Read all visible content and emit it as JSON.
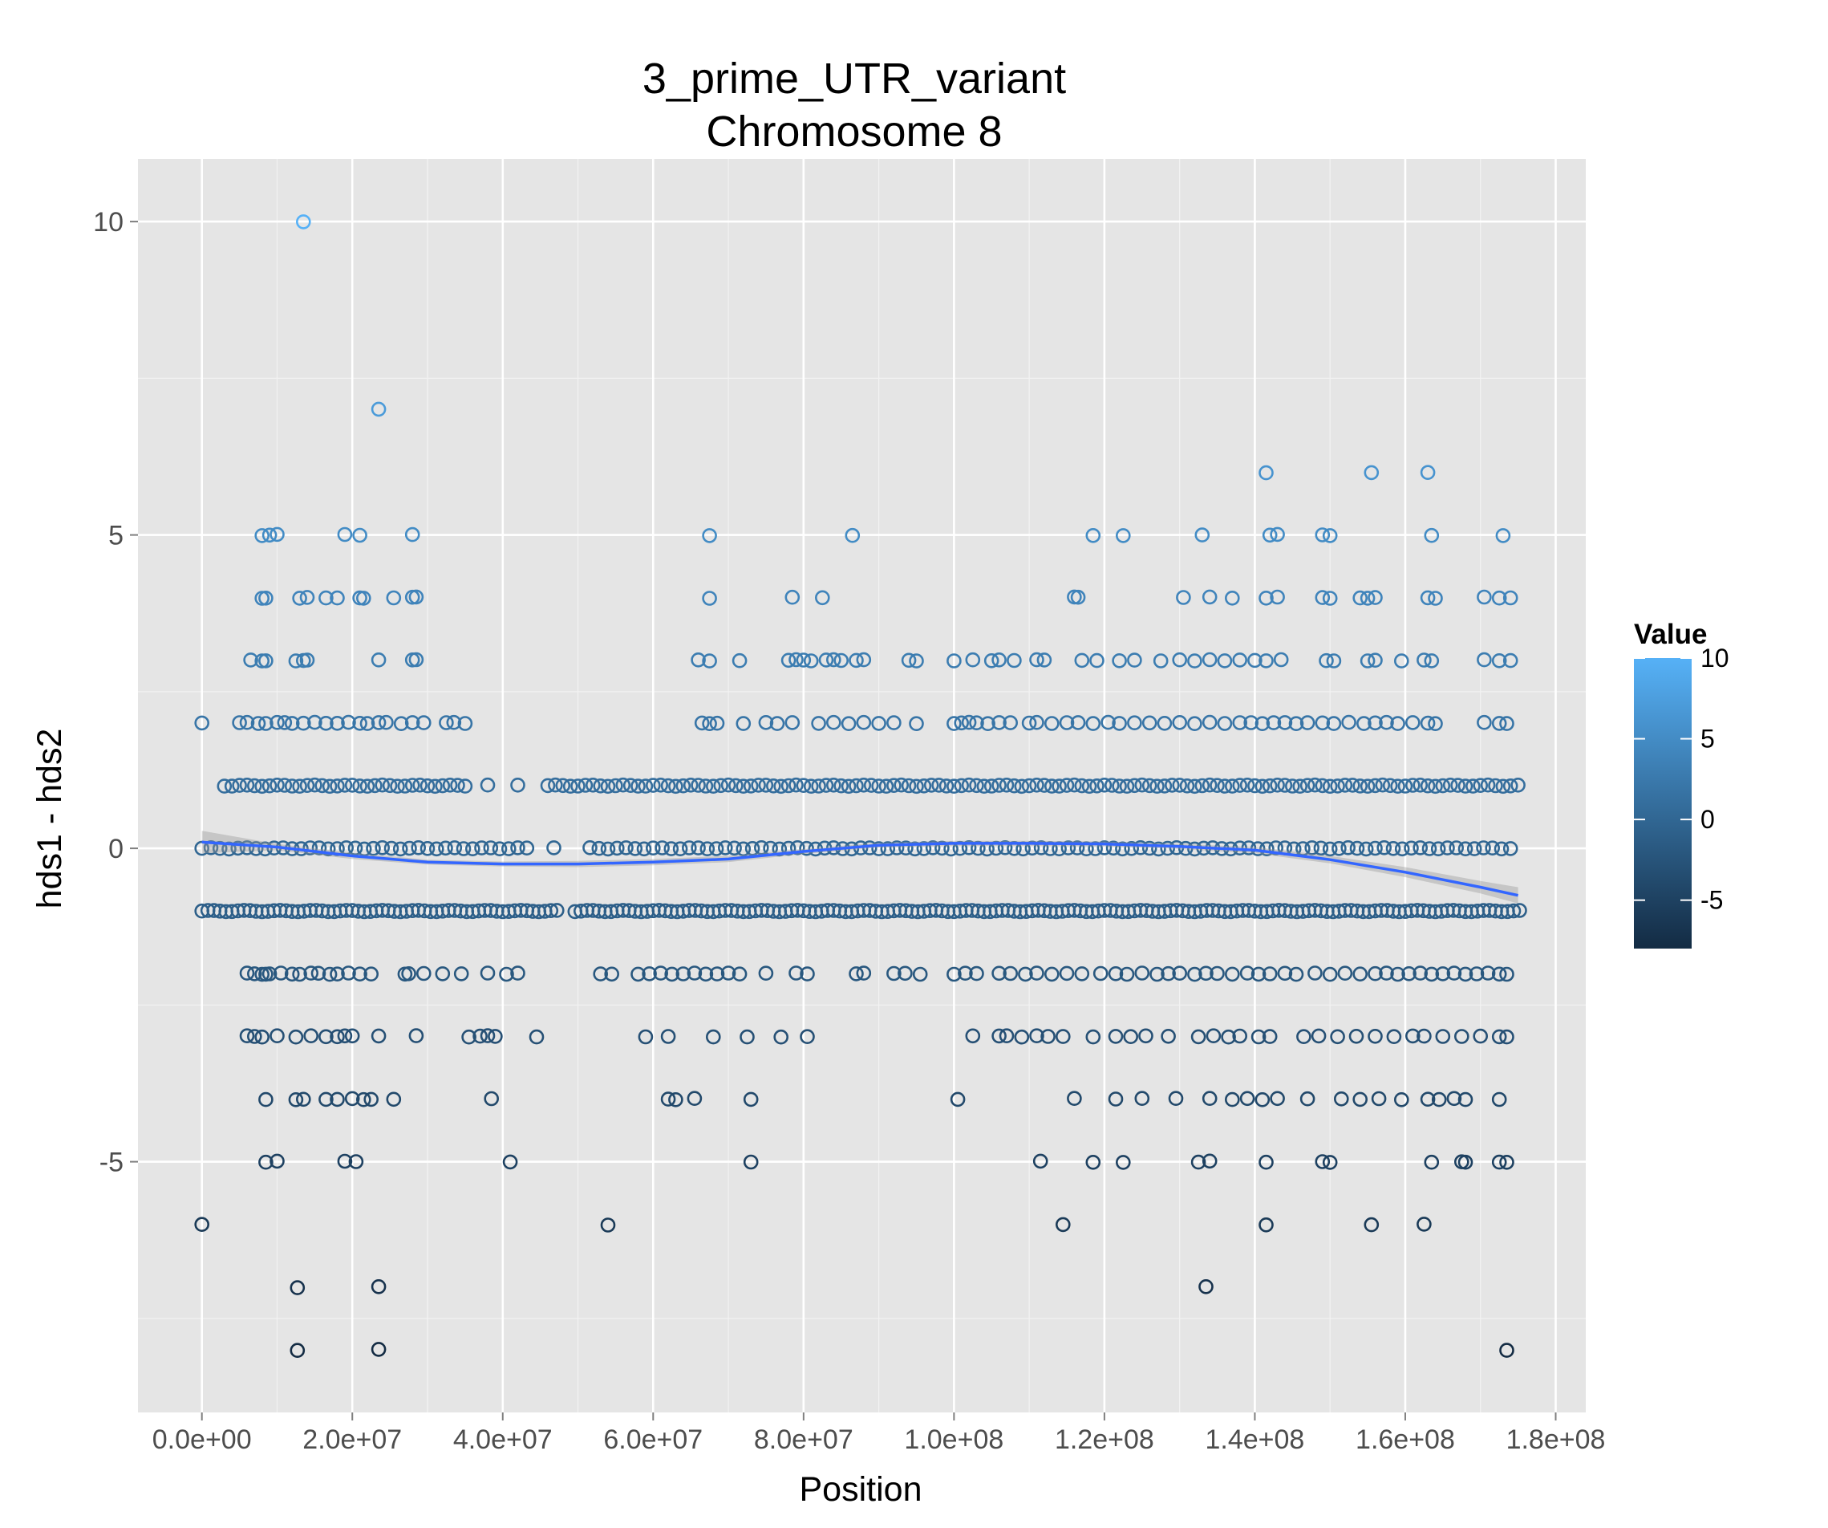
{
  "chart_data": {
    "type": "scatter",
    "title": [
      "3_prime_UTR_variant",
      "Chromosome 8"
    ],
    "xlabel": "Position",
    "ylabel": "hds1 - hds2",
    "xlim": [
      -8500000,
      184000000
    ],
    "ylim": [
      -9.0,
      11.0
    ],
    "x_ticks": [
      0,
      20000000,
      40000000,
      60000000,
      80000000,
      100000000,
      120000000,
      140000000,
      160000000,
      180000000
    ],
    "x_tick_labels": [
      "0.0e+00",
      "2.0e+07",
      "4.0e+07",
      "6.0e+07",
      "8.0e+07",
      "1.0e+08",
      "1.2e+08",
      "1.4e+08",
      "1.6e+08",
      "1.8e+08"
    ],
    "y_ticks": [
      10,
      5,
      0,
      -5
    ],
    "y_tick_labels": [
      "10",
      "5",
      "0",
      "-5"
    ],
    "grid": true,
    "panel_background": "#e5e5e5",
    "point_shape": "open-circle",
    "color_scale": {
      "title": "Value",
      "low": -8,
      "high": 10,
      "low_color": "#132b43",
      "high_color": "#56b1f7",
      "breaks": [
        10,
        5,
        0,
        -5
      ],
      "break_labels": [
        "10",
        "5",
        "0",
        "-5"
      ],
      "position": "right"
    },
    "smooth": {
      "color": "#3366ff",
      "band_color": "#999999",
      "x": [
        0,
        10000000,
        20000000,
        30000000,
        40000000,
        50000000,
        60000000,
        70000000,
        80000000,
        90000000,
        100000000,
        110000000,
        120000000,
        130000000,
        140000000,
        150000000,
        160000000,
        170000000,
        175000000
      ],
      "y": [
        0.1,
        0.02,
        -0.12,
        -0.22,
        -0.25,
        -0.25,
        -0.22,
        -0.17,
        -0.05,
        0.05,
        0.08,
        0.08,
        0.07,
        0.03,
        -0.03,
        -0.18,
        -0.38,
        -0.62,
        -0.75
      ],
      "band": [
        0.18,
        0.05,
        0.05,
        0.04,
        0.04,
        0.05,
        0.05,
        0.05,
        0.04,
        0.04,
        0.04,
        0.04,
        0.04,
        0.04,
        0.05,
        0.06,
        0.08,
        0.1,
        0.13
      ]
    },
    "points": [
      {
        "x": 13500000,
        "y": 10
      },
      {
        "x": 23500000,
        "y": 7
      },
      {
        "x": 141500000,
        "y": 6
      },
      {
        "x": 155500000,
        "y": 6
      },
      {
        "x": 163000000,
        "y": 6
      },
      {
        "x": 8000000,
        "y": 5
      },
      {
        "x": 9000000,
        "y": 5
      },
      {
        "x": 10000000,
        "y": 5
      },
      {
        "x": 19000000,
        "y": 5
      },
      {
        "x": 21000000,
        "y": 5
      },
      {
        "x": 28000000,
        "y": 5
      },
      {
        "x": 67500000,
        "y": 5
      },
      {
        "x": 86500000,
        "y": 5
      },
      {
        "x": 118500000,
        "y": 5
      },
      {
        "x": 122500000,
        "y": 5
      },
      {
        "x": 133000000,
        "y": 5
      },
      {
        "x": 142000000,
        "y": 5
      },
      {
        "x": 143000000,
        "y": 5
      },
      {
        "x": 149000000,
        "y": 5
      },
      {
        "x": 150000000,
        "y": 5
      },
      {
        "x": 163500000,
        "y": 5
      },
      {
        "x": 173000000,
        "y": 5
      },
      {
        "x": 0,
        "y": -6
      },
      {
        "x": 54000000,
        "y": -6
      },
      {
        "x": 114500000,
        "y": -6
      },
      {
        "x": 141500000,
        "y": -6
      },
      {
        "x": 155500000,
        "y": -6
      },
      {
        "x": 162500000,
        "y": -6
      },
      {
        "x": 12700000,
        "y": -7
      },
      {
        "x": 23500000,
        "y": -7
      },
      {
        "x": 133500000,
        "y": -7
      },
      {
        "x": 12700000,
        "y": -8
      },
      {
        "x": 23500000,
        "y": -8
      },
      {
        "x": 173500000,
        "y": -8
      }
    ],
    "rows": [
      {
        "y": 4,
        "x": [
          8000000,
          8500000,
          13000000,
          14000000,
          16500000,
          18000000,
          21000000,
          21500000,
          25500000,
          28000000,
          28500000,
          67500000,
          78500000,
          82500000,
          116000000,
          116500000,
          130500000,
          134000000,
          137000000,
          141500000,
          143000000,
          149000000,
          150000000,
          154000000,
          155000000,
          156000000,
          163000000,
          164000000,
          170500000,
          172500000,
          174000000
        ]
      },
      {
        "y": 3,
        "x": [
          6500000,
          8000000,
          8500000,
          12500000,
          13500000,
          14000000,
          23500000,
          28000000,
          28500000,
          66000000,
          67500000,
          71500000,
          78000000,
          79000000,
          80000000,
          81000000,
          83000000,
          84000000,
          85000000,
          87000000,
          88000000,
          94000000,
          95000000,
          100000000,
          102500000,
          105000000,
          106000000,
          108000000,
          111000000,
          112000000,
          117000000,
          119000000,
          122000000,
          124000000,
          127500000,
          130000000,
          132000000,
          134000000,
          136000000,
          138000000,
          140000000,
          141500000,
          143500000,
          149500000,
          150500000,
          155000000,
          156000000,
          159500000,
          162500000,
          163500000,
          170500000,
          172500000,
          174000000
        ]
      },
      {
        "y": 2,
        "x": [
          0,
          5000000,
          6000000,
          7500000,
          8500000,
          10000000,
          11000000,
          12000000,
          13500000,
          15000000,
          16500000,
          18000000,
          19500000,
          21000000,
          22000000,
          23500000,
          24500000,
          26500000,
          28000000,
          29500000,
          32500000,
          33500000,
          35000000,
          66500000,
          67500000,
          68500000,
          72000000,
          75000000,
          76500000,
          78500000,
          82000000,
          84000000,
          86000000,
          88000000,
          90000000,
          92000000,
          95000000,
          100000000,
          101000000,
          102000000,
          103000000,
          104500000,
          106000000,
          107500000,
          110000000,
          111000000,
          113000000,
          115000000,
          116500000,
          118500000,
          120500000,
          122000000,
          124000000,
          126000000,
          128000000,
          130000000,
          132000000,
          134000000,
          136000000,
          138000000,
          139500000,
          141000000,
          142500000,
          144000000,
          145500000,
          147000000,
          149000000,
          150500000,
          152500000,
          154500000,
          156000000,
          157500000,
          159000000,
          161000000,
          163000000,
          164000000,
          170500000,
          172500000,
          173500000
        ]
      },
      {
        "y": 1,
        "dense": true,
        "x0": 3000000,
        "x1": 175000000,
        "gap": [
          36000000,
          46000000
        ],
        "step": 1000000
      },
      {
        "y": 0,
        "dense": true,
        "x0": 0,
        "x1": 174500000,
        "gap": [
          44000000,
          52000000
        ],
        "step": 1200000
      },
      {
        "y": -1,
        "dense": true,
        "x0": 0,
        "x1": 175500000,
        "gap": [
          46500000,
          49500000
        ],
        "step": 800000
      },
      {
        "y": -2,
        "x": [
          6000000,
          7000000,
          8000000,
          8500000,
          9000000,
          10500000,
          12000000,
          13000000,
          14500000,
          15500000,
          17000000,
          18000000,
          19500000,
          21000000,
          22500000,
          27000000,
          27500000,
          29500000,
          32000000,
          34500000,
          38000000,
          40500000,
          42000000,
          53000000,
          54500000,
          58000000,
          59500000,
          61000000,
          62500000,
          64000000,
          65500000,
          67000000,
          68500000,
          70000000,
          71500000,
          75000000,
          79000000,
          80500000,
          87000000,
          88000000,
          92000000,
          93500000,
          95500000,
          100000000,
          101500000,
          103000000,
          106000000,
          107500000,
          109500000,
          111000000,
          113000000,
          115000000,
          117000000,
          119500000,
          121500000,
          123000000,
          125000000,
          127000000,
          128500000,
          130000000,
          132000000,
          133500000,
          135000000,
          137000000,
          139000000,
          140500000,
          142000000,
          144000000,
          145500000,
          148000000,
          150000000,
          152000000,
          154000000,
          156000000,
          157500000,
          159000000,
          160500000,
          162000000,
          163500000,
          165000000,
          166500000,
          168000000,
          169500000,
          171000000,
          172500000,
          173500000
        ]
      },
      {
        "y": -3,
        "x": [
          6000000,
          7000000,
          8000000,
          10000000,
          12500000,
          14500000,
          16500000,
          18000000,
          19000000,
          20000000,
          23500000,
          28500000,
          35500000,
          37000000,
          38000000,
          39000000,
          44500000,
          59000000,
          62000000,
          68000000,
          72500000,
          77000000,
          80500000,
          102500000,
          106000000,
          107000000,
          109000000,
          111000000,
          112500000,
          114500000,
          118500000,
          121500000,
          123500000,
          125500000,
          128500000,
          132500000,
          134500000,
          136500000,
          138000000,
          140500000,
          142000000,
          146500000,
          148500000,
          151000000,
          153500000,
          156000000,
          158500000,
          161000000,
          162500000,
          165000000,
          167500000,
          170000000,
          172500000,
          173500000
        ]
      },
      {
        "y": -4,
        "x": [
          8500000,
          12500000,
          13500000,
          16500000,
          18000000,
          20000000,
          21500000,
          22500000,
          25500000,
          38500000,
          62000000,
          63000000,
          65500000,
          73000000,
          100500000,
          116000000,
          121500000,
          125000000,
          129500000,
          134000000,
          137000000,
          139000000,
          141000000,
          143000000,
          147000000,
          151500000,
          154000000,
          156500000,
          159500000,
          163000000,
          164500000,
          166500000,
          168000000,
          172500000
        ]
      },
      {
        "y": -5,
        "x": [
          8500000,
          10000000,
          19000000,
          20500000,
          41000000,
          73000000,
          111500000,
          118500000,
          122500000,
          132500000,
          134000000,
          141500000,
          149000000,
          150000000,
          163500000,
          167500000,
          168000000,
          172500000,
          173500000
        ]
      }
    ]
  }
}
